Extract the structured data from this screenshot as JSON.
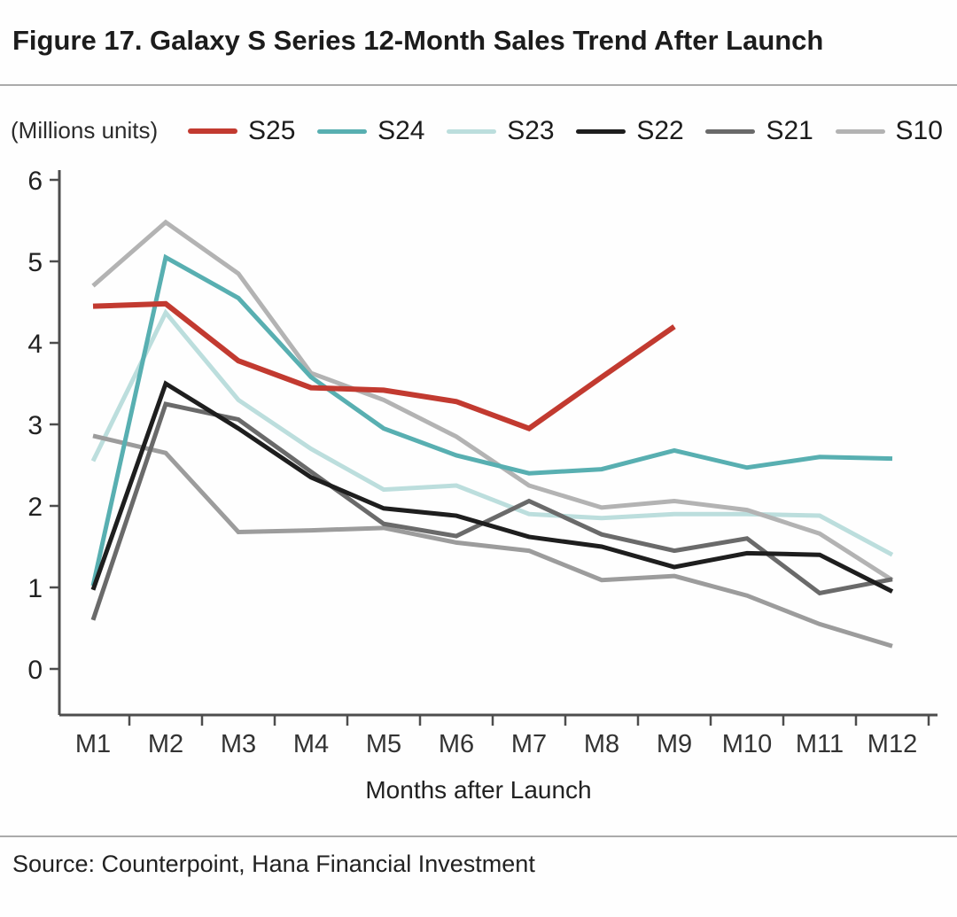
{
  "header": {
    "title": "Figure 17. Galaxy S Series 12-Month Sales Trend After Launch"
  },
  "footer": {
    "source": "Source: Counterpoint, Hana Financial Investment"
  },
  "chart_data": {
    "type": "line",
    "unit_label": "(Millions units)",
    "xlabel": "Months after Launch",
    "x_categories": [
      "M1",
      "M2",
      "M3",
      "M4",
      "M5",
      "M6",
      "M7",
      "M8",
      "M9",
      "M10",
      "M11",
      "M12"
    ],
    "ylim": [
      0,
      6
    ],
    "y_ticks": [
      0,
      1,
      2,
      3,
      4,
      5,
      6
    ],
    "grid": false,
    "legend_position": "top",
    "legend": [
      {
        "label": "S25",
        "color": "#c23a30"
      },
      {
        "label": "S24",
        "color": "#58afb1"
      },
      {
        "label": "S23",
        "color": "#bcdedd"
      },
      {
        "label": "S22",
        "color": "#1e1e1e"
      },
      {
        "label": "S21",
        "color": "#6a6a6a"
      },
      {
        "label": "S10",
        "color": "#b3b3b3"
      }
    ],
    "series": [
      {
        "name": "S25",
        "color": "#c23a30",
        "line_width": 6,
        "in_legend": true,
        "values": [
          4.45,
          4.48,
          3.78,
          3.45,
          3.42,
          3.28,
          2.95,
          3.58,
          4.2
        ]
      },
      {
        "name": "S24",
        "color": "#58afb1",
        "line_width": 5,
        "in_legend": true,
        "values": [
          1.02,
          5.05,
          4.55,
          3.58,
          2.95,
          2.62,
          2.4,
          2.45,
          2.68,
          2.47,
          2.6,
          2.58
        ]
      },
      {
        "name": "S23",
        "color": "#bcdedd",
        "line_width": 5,
        "in_legend": true,
        "values": [
          2.55,
          4.37,
          3.3,
          2.7,
          2.2,
          2.25,
          1.9,
          1.85,
          1.9,
          1.9,
          1.88,
          1.4
        ]
      },
      {
        "name": "S22",
        "color": "#1e1e1e",
        "line_width": 5,
        "in_legend": true,
        "values": [
          0.97,
          3.5,
          2.95,
          2.35,
          1.97,
          1.88,
          1.62,
          1.5,
          1.25,
          1.42,
          1.4,
          0.95
        ]
      },
      {
        "name": "S21",
        "color": "#6a6a6a",
        "line_width": 5,
        "in_legend": true,
        "values": [
          0.6,
          3.25,
          3.06,
          2.42,
          1.78,
          1.63,
          2.06,
          1.65,
          1.45,
          1.6,
          0.93,
          1.1
        ]
      },
      {
        "name": "S10",
        "color": "#b3b3b3",
        "line_width": 5,
        "in_legend": true,
        "values": [
          4.7,
          5.48,
          4.85,
          3.63,
          3.3,
          2.85,
          2.25,
          1.98,
          2.06,
          1.95,
          1.66,
          1.09
        ]
      },
      {
        "name": "unlabeled-gray",
        "color": "#9c9c9c",
        "line_width": 5,
        "in_legend": false,
        "values": [
          2.86,
          2.65,
          1.68,
          1.7,
          1.73,
          1.55,
          1.45,
          1.09,
          1.14,
          0.9,
          0.55,
          0.28
        ]
      }
    ]
  }
}
